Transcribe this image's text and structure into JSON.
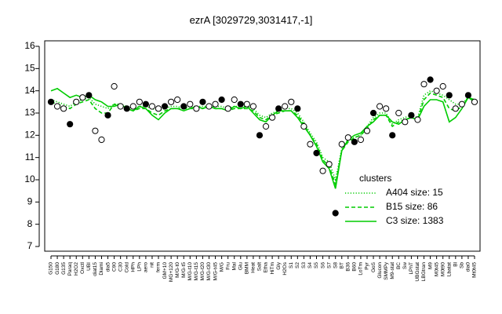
{
  "chart_data": {
    "type": "line",
    "title": "ezrA [3029729,3031417,-1]",
    "categories": [
      "G150",
      "G180",
      "G135",
      "Paraq",
      "H2O2",
      "Oxctl",
      "UBI",
      "diat15",
      "Diami",
      "dia5",
      "C90",
      "C30",
      "Cold",
      "HPh",
      "LPh",
      "aero",
      "nit",
      "ferm",
      "GM+10",
      "MG+120",
      "M/G-t0",
      "M/G-t5",
      "M/G-t10",
      "M/G-t15",
      "M/G-t20",
      "M/G-t30",
      "M/G-t45",
      "M/G",
      "Fru",
      "Mal",
      "Glu",
      "BMM",
      "Heat",
      "Salt",
      "Etha",
      "HiTm",
      "Gly",
      "H2Os",
      "S1",
      "S2",
      "S3",
      "S4",
      "S5",
      "S6",
      "S7",
      "S8",
      "BT",
      "B36",
      "B60",
      "LoTm",
      "Pyr",
      "GoS",
      "Glucon",
      "SMMPy",
      "M9-stat",
      "BC",
      "Sw",
      "LPhT",
      "UBGstat",
      "LBGtran",
      "M9",
      "M0t45",
      "M0t90",
      "Lbatat",
      "Bl",
      "Sb",
      "dia0",
      "Mt0t45"
    ],
    "ylim": [
      7,
      16
    ],
    "yticks": [
      7,
      8,
      9,
      10,
      11,
      12,
      13,
      14,
      15,
      16
    ],
    "legend_title": "clusters",
    "legend_position": "right",
    "series": [
      {
        "name": "A404 size: 15",
        "color": "#00cc00",
        "style": "dotted",
        "values": [
          13.6,
          13.5,
          13.4,
          13.3,
          13.5,
          13.6,
          13.7,
          13.4,
          13.3,
          13.2,
          13.4,
          13.4,
          13.3,
          13.2,
          13.3,
          13.3,
          13.2,
          13.1,
          13.2,
          13.3,
          13.3,
          13.2,
          13.3,
          13.3,
          13.3,
          13.3,
          13.3,
          13.3,
          13.2,
          13.3,
          13.3,
          13.3,
          13.2,
          12.9,
          12.8,
          13.0,
          13.1,
          13.2,
          13.2,
          13.0,
          12.6,
          12.1,
          11.7,
          11.0,
          10.8,
          10.0,
          11.4,
          11.8,
          11.9,
          12.0,
          12.4,
          12.8,
          13.0,
          13.0,
          12.5,
          12.7,
          12.8,
          12.9,
          12.8,
          13.8,
          14.0,
          13.9,
          13.8,
          13.6,
          13.4,
          13.4,
          13.7,
          13.6
        ]
      },
      {
        "name": "B15 size: 86",
        "color": "#00cc00",
        "style": "dashed",
        "values": [
          13.5,
          13.4,
          13.3,
          13.2,
          13.4,
          13.5,
          13.6,
          13.2,
          13.0,
          13.0,
          13.4,
          13.3,
          13.2,
          13.1,
          13.2,
          13.2,
          13.0,
          12.9,
          13.1,
          13.2,
          13.2,
          13.2,
          13.2,
          13.2,
          13.2,
          13.3,
          13.2,
          13.2,
          13.1,
          13.2,
          13.2,
          13.2,
          13.1,
          12.8,
          12.7,
          12.9,
          13.0,
          13.1,
          13.1,
          12.9,
          12.5,
          12.0,
          11.6,
          10.9,
          10.6,
          9.8,
          11.3,
          11.7,
          11.9,
          12.0,
          12.3,
          12.7,
          12.9,
          12.9,
          12.4,
          12.6,
          12.7,
          12.8,
          12.7,
          13.6,
          13.9,
          13.8,
          13.7,
          13.2,
          13.1,
          13.3,
          13.7,
          13.5
        ]
      },
      {
        "name": "C3 size: 1383",
        "color": "#00cc00",
        "style": "solid",
        "values": [
          14.0,
          14.1,
          13.9,
          13.7,
          13.8,
          13.7,
          13.8,
          13.6,
          13.5,
          13.3,
          13.3,
          13.4,
          13.2,
          13.1,
          13.3,
          13.2,
          12.9,
          12.7,
          13.0,
          13.2,
          13.2,
          13.1,
          13.2,
          13.3,
          13.2,
          13.3,
          13.2,
          13.2,
          13.1,
          13.3,
          13.2,
          13.3,
          13.0,
          12.7,
          12.6,
          12.9,
          13.1,
          13.1,
          13.1,
          12.8,
          12.4,
          12.0,
          11.5,
          10.8,
          10.5,
          9.6,
          11.3,
          11.8,
          12.0,
          12.1,
          12.4,
          12.6,
          12.9,
          12.9,
          12.6,
          12.5,
          12.7,
          12.8,
          12.7,
          13.3,
          13.6,
          13.6,
          13.5,
          12.6,
          12.8,
          13.2,
          13.7,
          13.6
        ]
      }
    ],
    "points": {
      "color": "#000000",
      "values": [
        13.5,
        13.3,
        13.2,
        12.5,
        13.5,
        13.7,
        13.8,
        12.2,
        11.8,
        12.9,
        14.2,
        13.3,
        13.2,
        13.3,
        13.5,
        13.4,
        13.3,
        13.2,
        13.3,
        13.5,
        13.6,
        13.3,
        13.4,
        13.2,
        13.5,
        13.3,
        13.4,
        13.6,
        13.2,
        13.6,
        13.4,
        13.4,
        13.3,
        12.0,
        12.4,
        12.8,
        13.2,
        13.3,
        13.5,
        13.2,
        12.4,
        11.6,
        11.2,
        10.4,
        10.7,
        8.5,
        11.6,
        11.9,
        11.7,
        11.8,
        12.2,
        13.0,
        13.3,
        13.2,
        12.0,
        13.0,
        12.6,
        12.9,
        12.7,
        14.3,
        14.5,
        14.0,
        14.2,
        13.8,
        13.2,
        13.4,
        13.8,
        13.5
      ]
    }
  }
}
